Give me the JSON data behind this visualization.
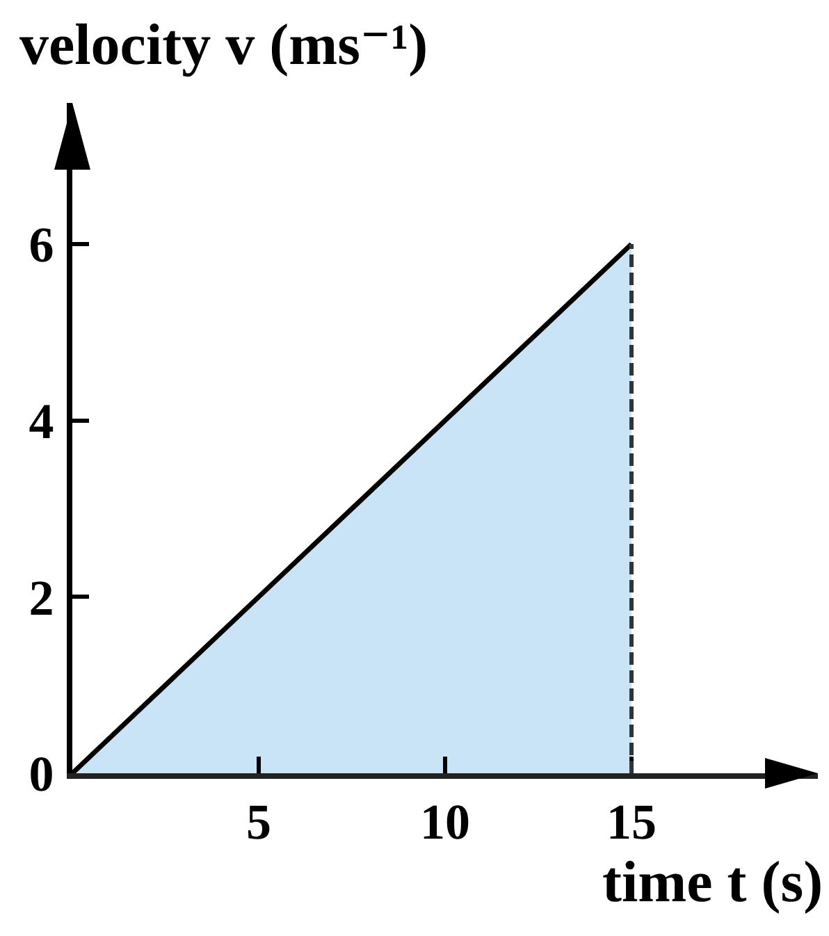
{
  "chart_data": {
    "type": "area",
    "xlabel": "time t (s)",
    "ylabel": "velocity v (ms⁻¹)",
    "series": [
      {
        "x": [
          0,
          15
        ],
        "values": [
          0,
          6
        ],
        "color": "#c8e4f6"
      }
    ],
    "ref_lines": [
      {
        "axis": "x",
        "value": 15,
        "color": "#333333",
        "line_style": "dashed"
      }
    ],
    "xlim": [
      0,
      20
    ],
    "ylim": [
      0,
      7.6
    ],
    "xticks": [
      5,
      10,
      15
    ],
    "yticks": [
      0,
      2,
      4,
      6
    ]
  }
}
